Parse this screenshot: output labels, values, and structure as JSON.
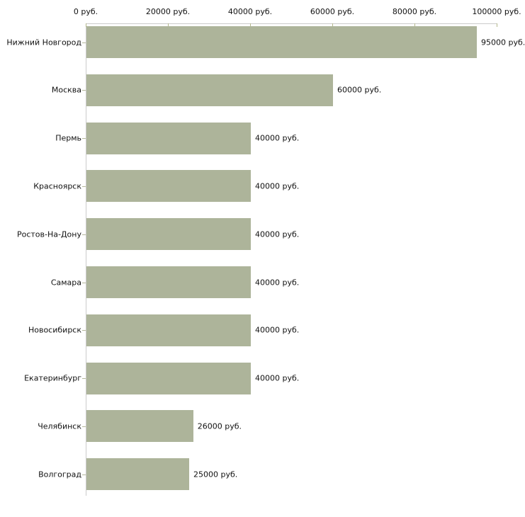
{
  "chart_data": {
    "type": "bar",
    "orientation": "horizontal",
    "title": "",
    "xlabel": "",
    "ylabel": "",
    "unit": "руб.",
    "categories": [
      "Нижний Новгород",
      "Москва",
      "Пермь",
      "Красноярск",
      "Ростов-На-Дону",
      "Самара",
      "Новосибирск",
      "Екатеринбург",
      "Челябинск",
      "Волгоград"
    ],
    "values": [
      95000,
      60000,
      40000,
      40000,
      40000,
      40000,
      40000,
      40000,
      26000,
      25000
    ],
    "value_labels": [
      "95000 руб.",
      "60000 руб.",
      "40000 руб.",
      "40000 руб.",
      "40000 руб.",
      "40000 руб.",
      "40000 руб.",
      "40000 руб.",
      "26000 руб.",
      "25000 руб."
    ],
    "x_axis": {
      "range": [
        0,
        100000
      ],
      "ticks": [
        {
          "value": 0,
          "label": "0 руб."
        },
        {
          "value": 20000,
          "label": "20000 руб."
        },
        {
          "value": 40000,
          "label": "40000 руб."
        },
        {
          "value": 60000,
          "label": "60000 руб."
        },
        {
          "value": 80000,
          "label": "80000 руб."
        },
        {
          "value": 100000,
          "label": "100000 руб."
        }
      ],
      "position": "top"
    },
    "grid": false,
    "legend": false,
    "colors": {
      "bar": "#adb49a",
      "axis_line": "#cbcbcb",
      "tick_mark": "#b4b88c",
      "category_tick": "#b3b69a",
      "text": "#111111",
      "background": "#ffffff"
    }
  }
}
